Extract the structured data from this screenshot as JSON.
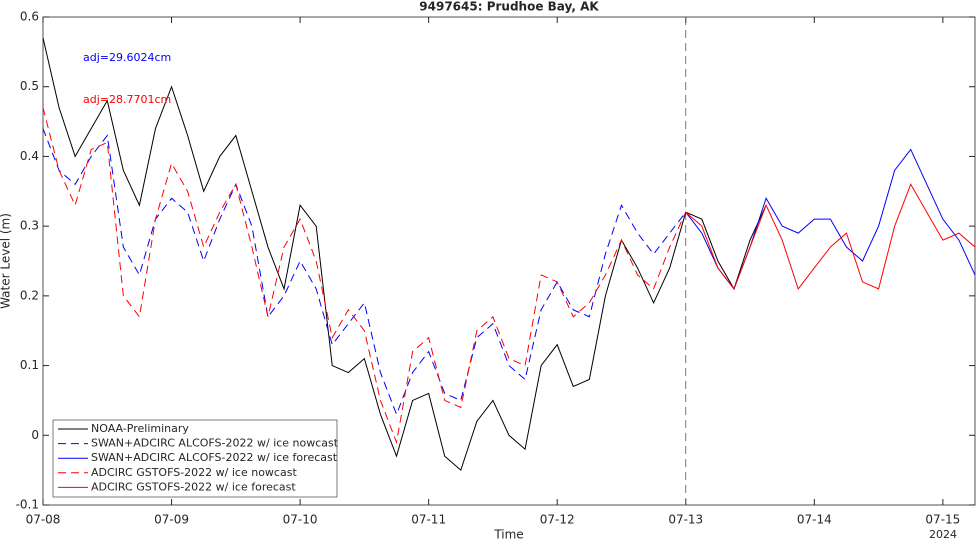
{
  "chart_data": {
    "type": "line",
    "title": "9497645: Prudhoe Bay, AK",
    "x_label": "Time",
    "y_label": "Water Level (m)",
    "x_year_label": "2024",
    "xlim": [
      0,
      7.25
    ],
    "ylim": [
      -0.1,
      0.6
    ],
    "xticks": [
      {
        "value": 0,
        "label": "07-08"
      },
      {
        "value": 1,
        "label": "07-09"
      },
      {
        "value": 2,
        "label": "07-10"
      },
      {
        "value": 3,
        "label": "07-11"
      },
      {
        "value": 4,
        "label": "07-12"
      },
      {
        "value": 5,
        "label": "07-13"
      },
      {
        "value": 6,
        "label": "07-14"
      },
      {
        "value": 7,
        "label": "07-15"
      }
    ],
    "yticks": [
      -0.1,
      0,
      0.1,
      0.2,
      0.3,
      0.4,
      0.5,
      0.6
    ],
    "grid": false,
    "vline": 5,
    "legend": "lower left",
    "annotations": [
      {
        "text": "adj=29.6024cm",
        "color": "#0000ff"
      },
      {
        "text": "adj=28.7701cm",
        "color": "#ff0000"
      }
    ],
    "x": [
      0,
      0.125,
      0.25,
      0.375,
      0.5,
      0.625,
      0.75,
      0.875,
      1,
      1.125,
      1.25,
      1.375,
      1.5,
      1.625,
      1.75,
      1.875,
      2,
      2.125,
      2.25,
      2.375,
      2.5,
      2.625,
      2.75,
      2.875,
      3,
      3.125,
      3.25,
      3.375,
      3.5,
      3.625,
      3.75,
      3.875,
      4,
      4.125,
      4.25,
      4.375,
      4.5,
      4.625,
      4.75,
      4.875,
      5,
      5.125,
      5.25,
      5.375,
      5.5,
      5.625,
      5.75,
      5.875,
      6,
      6.125,
      6.25,
      6.375,
      6.5,
      6.625,
      6.75,
      6.875,
      7,
      7.125,
      7.25
    ],
    "series": [
      {
        "name": "NOAA-Preliminary",
        "color": "#000000",
        "dash": false,
        "values": [
          0.57,
          0.47,
          0.4,
          0.44,
          0.48,
          0.38,
          0.33,
          0.44,
          0.5,
          0.43,
          0.35,
          0.4,
          0.43,
          0.35,
          0.27,
          0.21,
          0.33,
          0.3,
          0.1,
          0.09,
          0.11,
          0.03,
          -0.03,
          0.05,
          0.06,
          -0.03,
          -0.05,
          0.02,
          0.05,
          0.0,
          -0.02,
          0.1,
          0.13,
          0.07,
          0.08,
          0.2,
          0.28,
          0.24,
          0.19,
          0.24,
          0.32,
          0.31,
          0.25,
          0.21,
          0.28,
          0.33,
          null,
          null,
          null,
          null,
          null,
          null,
          null,
          null,
          null,
          null,
          null,
          null,
          null
        ]
      },
      {
        "name": "SWAN+ADCIRC ALCOFS-2022 w/ ice nowcast",
        "color": "#0000ff",
        "dash": true,
        "values": [
          0.44,
          0.38,
          0.36,
          0.4,
          0.43,
          0.27,
          0.23,
          0.31,
          0.34,
          0.32,
          0.25,
          0.31,
          0.36,
          0.3,
          0.17,
          0.2,
          0.25,
          0.21,
          0.13,
          0.16,
          0.19,
          0.09,
          0.03,
          0.09,
          0.12,
          0.06,
          0.05,
          0.14,
          0.16,
          0.1,
          0.08,
          0.18,
          0.22,
          0.18,
          0.17,
          0.26,
          0.33,
          0.29,
          0.26,
          0.29,
          0.32,
          null,
          null,
          null,
          null,
          null,
          null,
          null,
          null,
          null,
          null,
          null,
          null,
          null,
          null,
          null,
          null,
          null,
          null
        ]
      },
      {
        "name": "SWAN+ADCIRC ALCOFS-2022 w/ ice forecast",
        "color": "#0000ff",
        "dash": false,
        "values": [
          null,
          null,
          null,
          null,
          null,
          null,
          null,
          null,
          null,
          null,
          null,
          null,
          null,
          null,
          null,
          null,
          null,
          null,
          null,
          null,
          null,
          null,
          null,
          null,
          null,
          null,
          null,
          null,
          null,
          null,
          null,
          null,
          null,
          null,
          null,
          null,
          null,
          null,
          null,
          null,
          0.32,
          0.29,
          0.24,
          0.21,
          0.27,
          0.34,
          0.3,
          0.29,
          0.31,
          0.31,
          0.27,
          0.25,
          0.3,
          0.38,
          0.41,
          0.36,
          0.31,
          0.28,
          0.23
        ]
      },
      {
        "name": "ADCIRC GSTOFS-2022 w/ ice nowcast",
        "color": "#ff0000",
        "dash": true,
        "values": [
          0.47,
          0.38,
          0.33,
          0.41,
          0.42,
          0.2,
          0.17,
          0.31,
          0.39,
          0.35,
          0.27,
          0.32,
          0.36,
          0.27,
          0.17,
          0.27,
          0.31,
          0.25,
          0.14,
          0.18,
          0.15,
          0.05,
          -0.01,
          0.12,
          0.14,
          0.05,
          0.04,
          0.15,
          0.17,
          0.11,
          0.1,
          0.23,
          0.22,
          0.17,
          0.19,
          0.23,
          0.28,
          0.23,
          0.21,
          0.27,
          0.32,
          null,
          null,
          null,
          null,
          null,
          null,
          null,
          null,
          null,
          null,
          null,
          null,
          null,
          null,
          null,
          null,
          null,
          null
        ]
      },
      {
        "name": "ADCIRC GSTOFS-2022 w/ ice forecast",
        "color": "#ff0000",
        "dash": false,
        "values": [
          null,
          null,
          null,
          null,
          null,
          null,
          null,
          null,
          null,
          null,
          null,
          null,
          null,
          null,
          null,
          null,
          null,
          null,
          null,
          null,
          null,
          null,
          null,
          null,
          null,
          null,
          null,
          null,
          null,
          null,
          null,
          null,
          null,
          null,
          null,
          null,
          null,
          null,
          null,
          null,
          0.32,
          0.3,
          0.24,
          0.21,
          0.27,
          0.33,
          0.28,
          0.21,
          0.24,
          0.27,
          0.29,
          0.22,
          0.21,
          0.3,
          0.36,
          0.32,
          0.28,
          0.29,
          0.27
        ]
      }
    ]
  }
}
